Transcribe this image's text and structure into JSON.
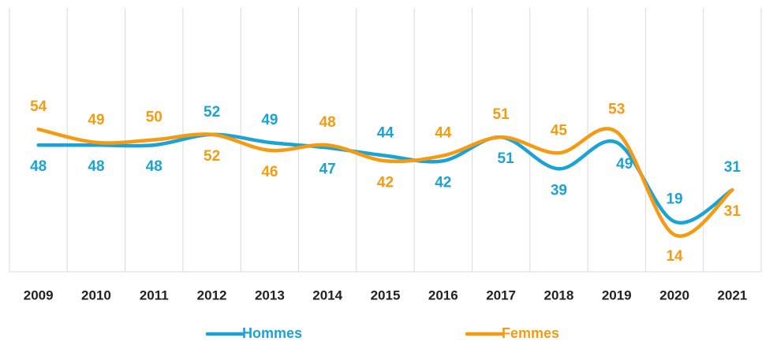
{
  "chart_data": {
    "type": "line",
    "categories": [
      "2009",
      "2010",
      "2011",
      "2012",
      "2013",
      "2014",
      "2015",
      "2016",
      "2017",
      "2018",
      "2019",
      "2020",
      "2021"
    ],
    "series": [
      {
        "name": "Hommes",
        "color": "#1ba3d6",
        "values": [
          48,
          48,
          48,
          52,
          49,
          47,
          44,
          42,
          51,
          39,
          49,
          19,
          31
        ]
      },
      {
        "name": "Femmes",
        "color": "#f59b12",
        "values": [
          54,
          49,
          50,
          52,
          46,
          48,
          42,
          44,
          51,
          45,
          53,
          14,
          31
        ]
      }
    ],
    "ylim": [
      0,
      100
    ],
    "grid": true,
    "smooth": true,
    "legend": "bottom"
  }
}
